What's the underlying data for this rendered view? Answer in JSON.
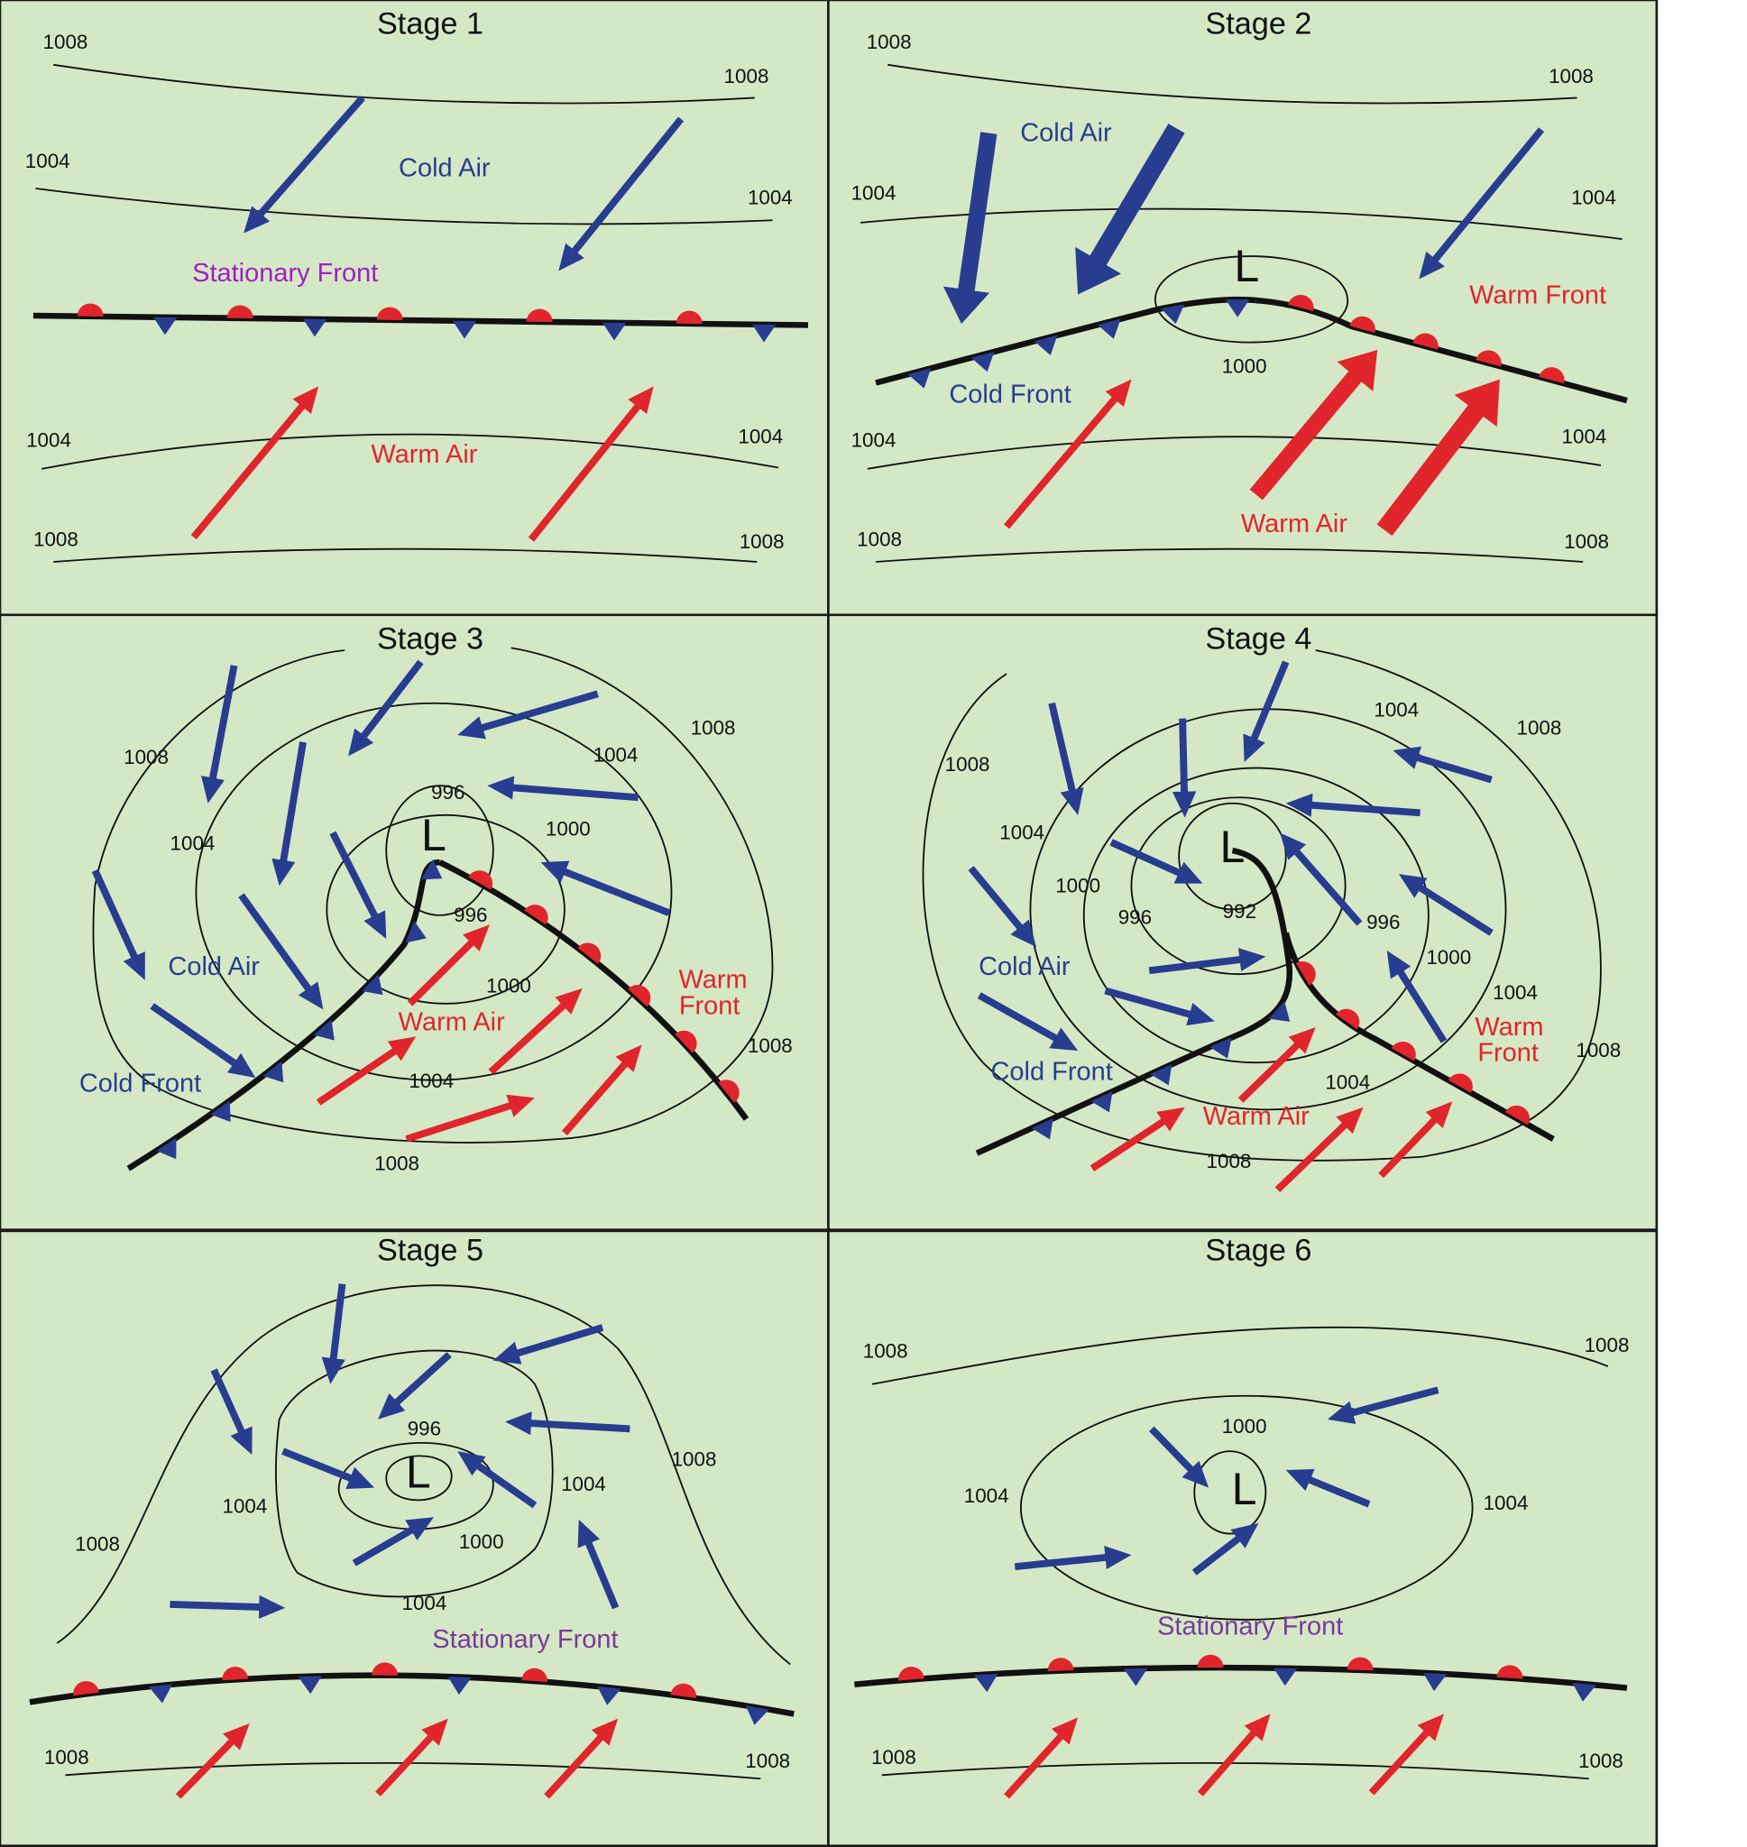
{
  "panels": [
    {
      "title": "Stage 1",
      "isobars": [
        "1008",
        "1008",
        "1004",
        "1004",
        "1004",
        "1004",
        "1008",
        "1008"
      ],
      "labels": [
        "Cold Air",
        "Stationary Front",
        "Warm Air"
      ]
    },
    {
      "title": "Stage 2",
      "low": "L",
      "isobars": [
        "1008",
        "1008",
        "1004",
        "1004",
        "1000",
        "1004",
        "1004",
        "1008",
        "1008"
      ],
      "labels": [
        "Cold Air",
        "Warm Front",
        "Cold Front",
        "Warm Air"
      ]
    },
    {
      "title": "Stage 3",
      "low": "L",
      "isobars": [
        "1008",
        "1008",
        "1008",
        "1008",
        "1004",
        "1004",
        "1004",
        "1000",
        "1000",
        "996",
        "996"
      ],
      "labels": [
        "Cold Air",
        "Warm Air",
        "Warm",
        "Front",
        "Cold Front"
      ]
    },
    {
      "title": "Stage 4",
      "low": "L",
      "isobars": [
        "1008",
        "1008",
        "1008",
        "1008",
        "1004",
        "1004",
        "1004",
        "1004",
        "1000",
        "1000",
        "996",
        "996",
        "992"
      ],
      "labels": [
        "Cold Air",
        "Warm Air",
        "Warm",
        "Front",
        "Cold Front"
      ]
    },
    {
      "title": "Stage 5",
      "low": "L",
      "isobars": [
        "1008",
        "1008",
        "1004",
        "1004",
        "1004",
        "996",
        "1000",
        "1008",
        "1008"
      ],
      "labels": [
        "Stationary Front"
      ]
    },
    {
      "title": "Stage 6",
      "low": "L",
      "isobars": [
        "1008",
        "1008",
        "1000",
        "1004",
        "1004",
        "1008",
        "1008"
      ],
      "labels": [
        "Stationary Front"
      ]
    }
  ]
}
